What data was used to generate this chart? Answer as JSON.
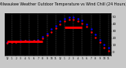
{
  "title": "Milwaukee Weather Outdoor Temperature vs Wind Chill (24 Hours)",
  "title_fontsize": 3.5,
  "background_color": "#c8c8c8",
  "plot_bg_color": "#000000",
  "ylim": [
    -5,
    55
  ],
  "yticks": [
    0,
    10,
    20,
    30,
    40,
    50
  ],
  "ytick_labels": [
    "0",
    "10",
    "20",
    "30",
    "40",
    "50"
  ],
  "hours": [
    0,
    1,
    2,
    3,
    4,
    5,
    6,
    7,
    8,
    9,
    10,
    11,
    12,
    13,
    14,
    15,
    16,
    17,
    18,
    19,
    20,
    21,
    22,
    23
  ],
  "temp": [
    14,
    15,
    15,
    16,
    17,
    16,
    17,
    18,
    22,
    27,
    33,
    38,
    44,
    48,
    50,
    50,
    48,
    45,
    40,
    33,
    25,
    18,
    11,
    6
  ],
  "windchill": [
    13,
    14,
    14,
    15,
    16,
    15,
    16,
    17,
    20,
    24,
    29,
    34,
    40,
    44,
    46,
    46,
    44,
    41,
    36,
    29,
    21,
    14,
    7,
    2
  ],
  "wc_flat_x1": 0,
  "wc_flat_x2": 8,
  "wc_flat_y": 15,
  "wc_flat2_x1": 13,
  "wc_flat2_x2": 17,
  "wc_flat2_y": 35,
  "temp_color": "#0000ff",
  "windchill_color": "#ff0000",
  "grid_color": "#808080",
  "grid_positions": [
    1,
    3,
    5,
    7,
    9,
    11,
    13,
    15,
    17,
    19,
    21,
    23
  ],
  "xtick_positions": [
    0,
    1,
    2,
    3,
    4,
    5,
    6,
    7,
    8,
    9,
    10,
    11,
    12,
    13,
    14,
    15,
    16,
    17,
    18,
    19,
    20,
    21,
    22,
    23
  ],
  "xtick_labels": [
    "12",
    "1",
    "2",
    "3",
    "4",
    "5",
    "6",
    "7",
    "8",
    "9",
    "10",
    "11",
    "12",
    "1",
    "2",
    "3",
    "4",
    "5",
    "6",
    "7",
    "8",
    "9",
    "10",
    "11"
  ],
  "markersize": 1.5,
  "flat_linewidth": 2.0
}
